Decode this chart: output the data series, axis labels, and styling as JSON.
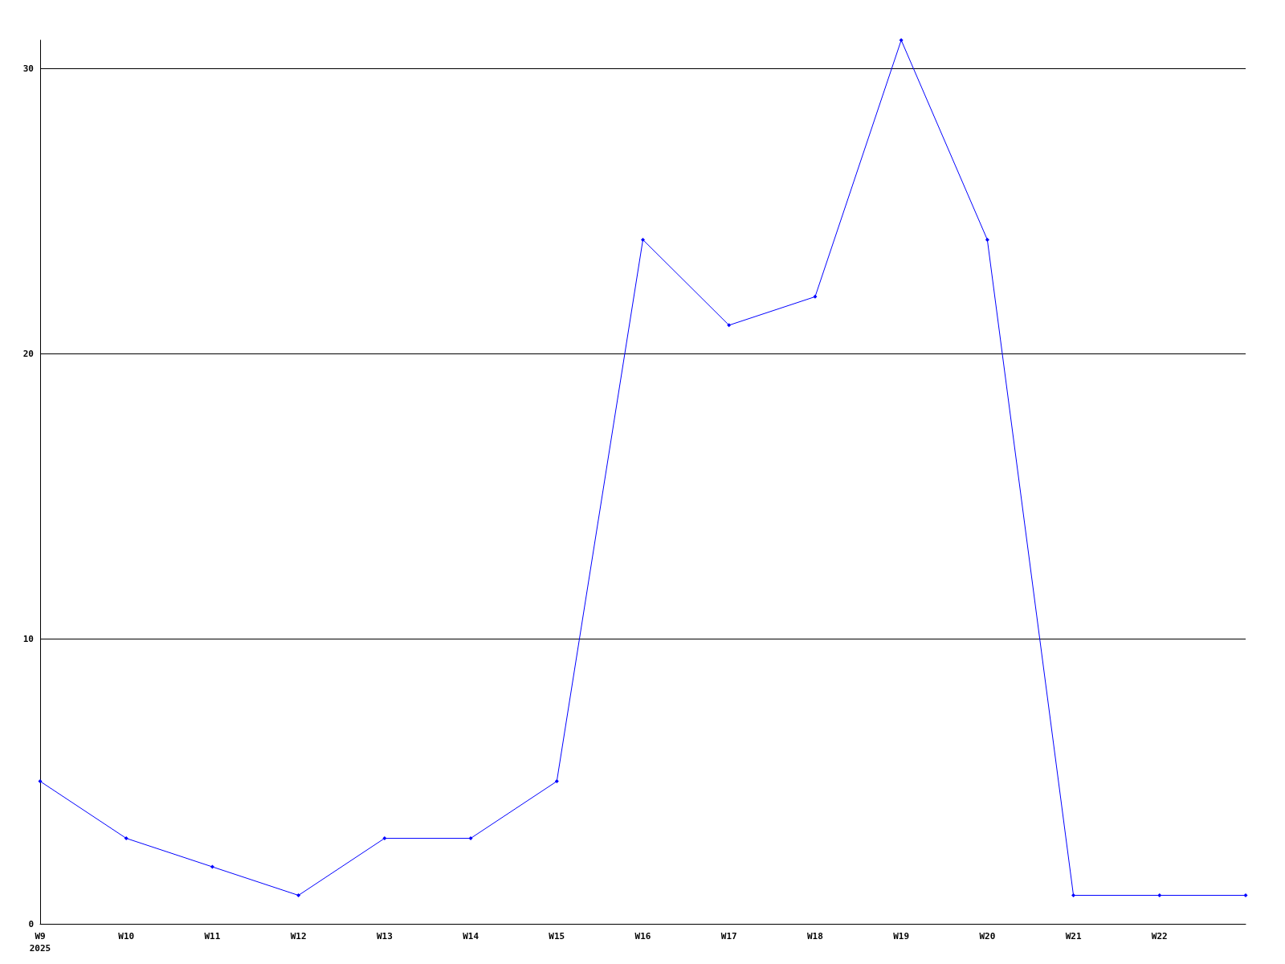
{
  "chart_data": {
    "type": "line",
    "categories": [
      "W9\n2025",
      "W10",
      "W11",
      "W12",
      "W13",
      "W14",
      "W15",
      "W16",
      "W17",
      "W18",
      "W19",
      "W20",
      "W21",
      "W22",
      null
    ],
    "series": [
      {
        "color": "#0000ff",
        "values": [
          5,
          3,
          2,
          1,
          3,
          3,
          5,
          24,
          21,
          22,
          31,
          24,
          1,
          1,
          1
        ]
      }
    ],
    "ylim": [
      0,
      31
    ],
    "yticks": [
      0,
      10,
      20,
      30
    ],
    "grid": "y",
    "marker": "diamond",
    "line_style": "solid"
  }
}
